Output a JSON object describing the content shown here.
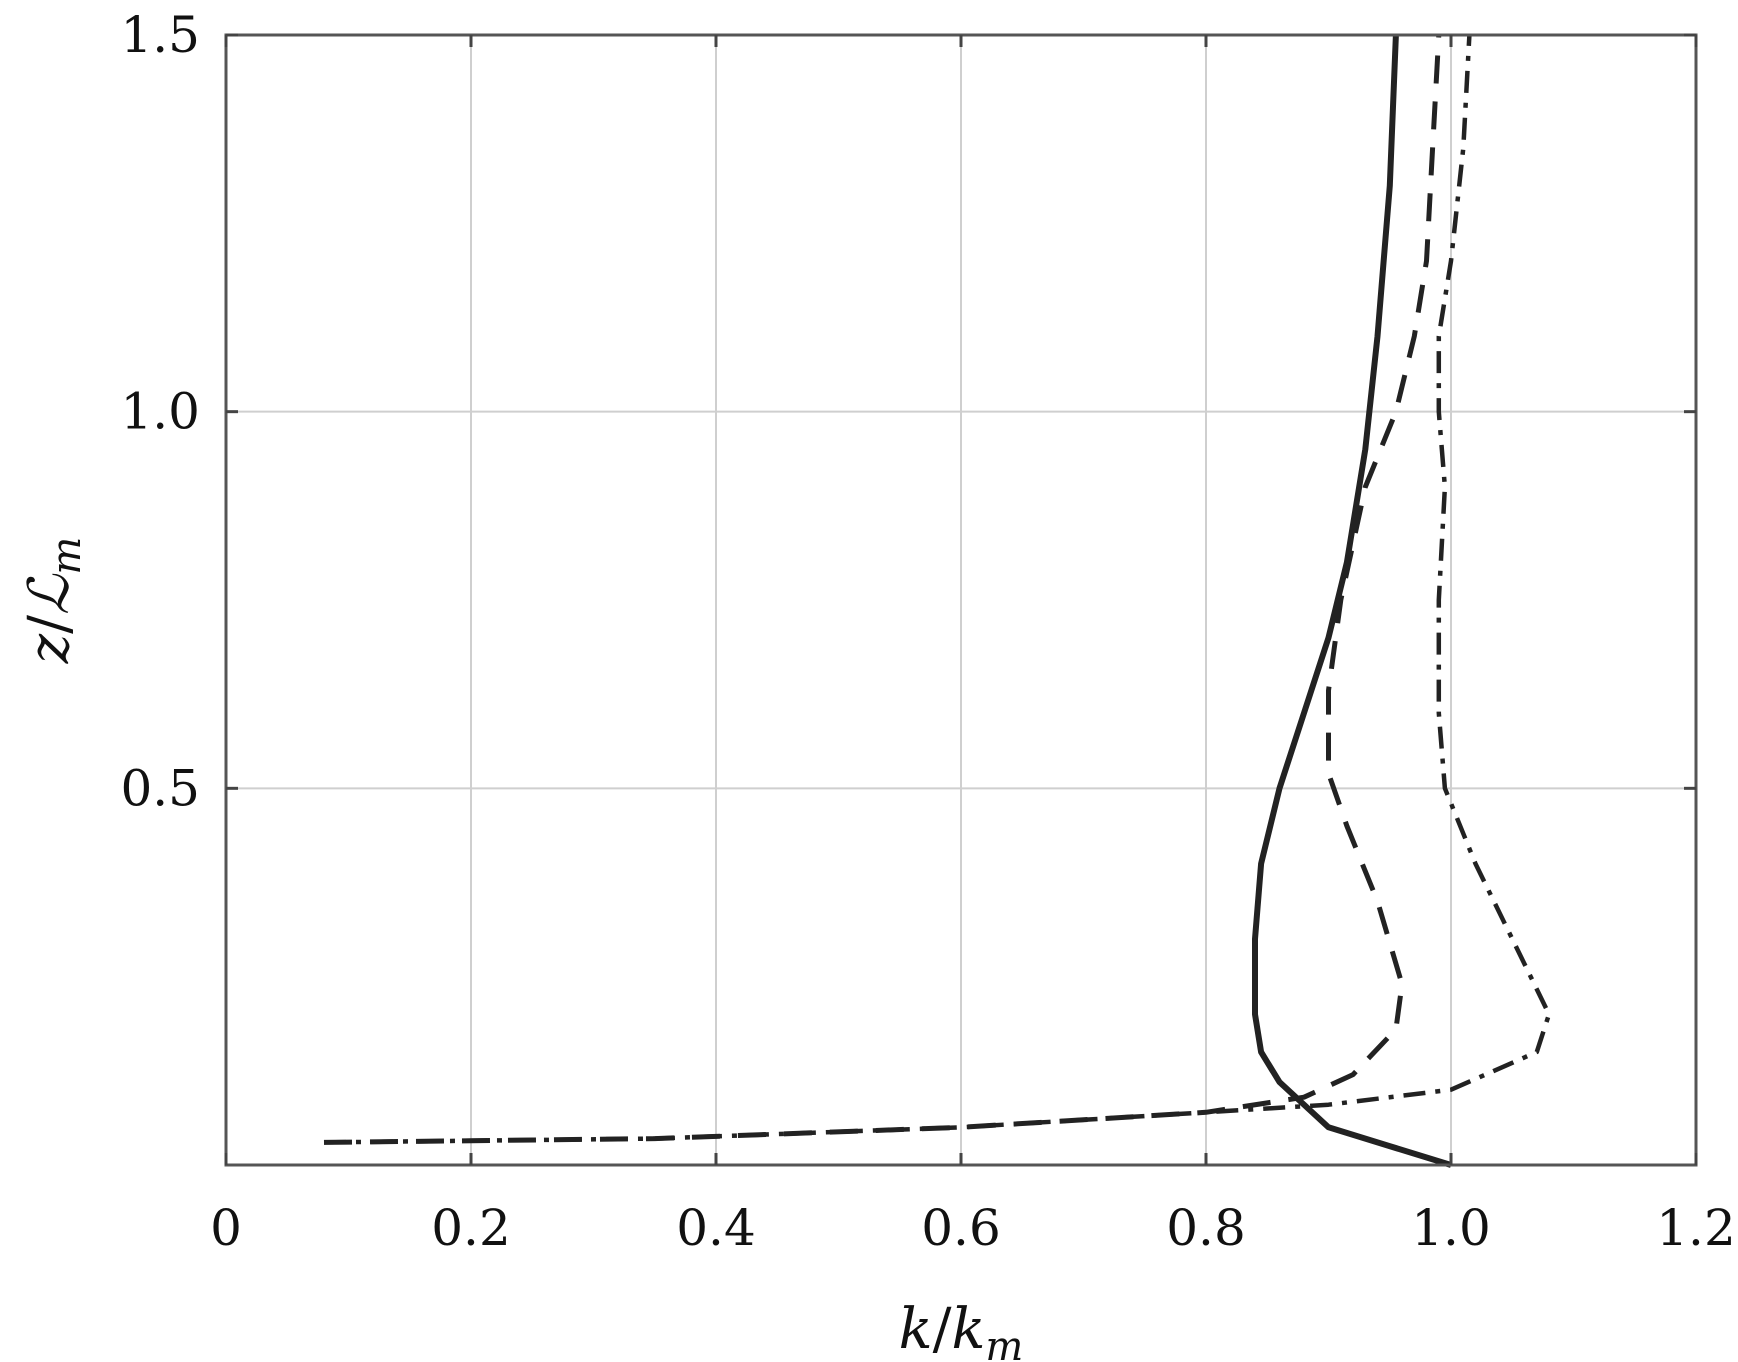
{
  "chart_data": {
    "type": "line",
    "title": "",
    "xlabel": "k/k_m",
    "ylabel": "z/ℒ_m",
    "xlim": [
      0,
      1.2
    ],
    "ylim": [
      0,
      1.5
    ],
    "xticks": [
      0,
      0.2,
      0.4,
      0.6,
      0.8,
      1.0,
      1.2
    ],
    "xtick_labels": [
      "0",
      "0.2",
      "0.4",
      "0.6",
      "0.8",
      "1.0",
      "1.2"
    ],
    "yticks": [
      0.5,
      1.0,
      1.5
    ],
    "ytick_labels": [
      "0.5",
      "1.0",
      "1.5"
    ],
    "grid": true,
    "legend": "none",
    "series": [
      {
        "style": "solid",
        "x": [
          1.0,
          0.9,
          0.88,
          0.86,
          0.845,
          0.84,
          0.84,
          0.845,
          0.86,
          0.88,
          0.9,
          0.915,
          0.93,
          0.94,
          0.95,
          0.955
        ],
        "y": [
          0.0,
          0.05,
          0.08,
          0.11,
          0.15,
          0.2,
          0.3,
          0.4,
          0.5,
          0.6,
          0.7,
          0.8,
          0.95,
          1.1,
          1.3,
          1.5
        ]
      },
      {
        "style": "dashed",
        "x": [
          0.08,
          0.35,
          0.6,
          0.8,
          0.88,
          0.92,
          0.955,
          0.96,
          0.94,
          0.915,
          0.9,
          0.9,
          0.91,
          0.93,
          0.955,
          0.97,
          0.98,
          0.985,
          0.99
        ],
        "y": [
          0.03,
          0.035,
          0.05,
          0.07,
          0.09,
          0.12,
          0.18,
          0.24,
          0.35,
          0.45,
          0.52,
          0.63,
          0.75,
          0.9,
          1.0,
          1.1,
          1.2,
          1.35,
          1.5
        ]
      },
      {
        "style": "dash-dot",
        "x": [
          0.08,
          0.35,
          0.6,
          0.8,
          0.9,
          1.0,
          1.07,
          1.08,
          1.05,
          1.02,
          0.995,
          0.99,
          0.99,
          0.995,
          0.99,
          0.99,
          1.0,
          1.01,
          1.015
        ],
        "y": [
          0.03,
          0.035,
          0.05,
          0.07,
          0.08,
          0.1,
          0.15,
          0.2,
          0.3,
          0.4,
          0.5,
          0.6,
          0.75,
          0.9,
          1.0,
          1.1,
          1.2,
          1.35,
          1.5
        ]
      }
    ]
  }
}
